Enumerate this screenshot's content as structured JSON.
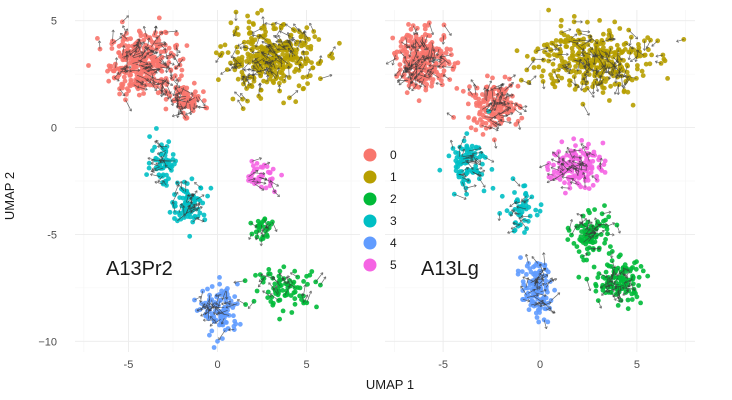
{
  "chart_data": [
    {
      "type": "scatter",
      "panel_label": "A13Pr2",
      "xlim": [
        -8,
        8
      ],
      "ylim": [
        -10.5,
        5.5
      ],
      "x_ticks": [
        -5,
        0,
        5
      ],
      "y_ticks": [
        5,
        0,
        -5,
        -10
      ],
      "x_tick_labels": [
        "-5",
        "0",
        "5"
      ],
      "y_tick_labels": [
        "5",
        "0",
        "-5",
        "−10"
      ],
      "grid": true,
      "overlay": "velocity arrows",
      "clusters": [
        {
          "name": "0",
          "color": "#F8766D",
          "center": [
            -4.2,
            3.0
          ],
          "spread": [
            1.7,
            1.3
          ],
          "n": 330
        },
        {
          "name": "0",
          "color": "#F8766D",
          "center": [
            -1.8,
            1.3
          ],
          "spread": [
            0.8,
            0.6
          ],
          "n": 80
        },
        {
          "name": "1",
          "color": "#B79F00",
          "center": [
            3.0,
            3.2
          ],
          "spread": [
            2.4,
            1.4
          ],
          "n": 330
        },
        {
          "name": "2",
          "color": "#00BA38",
          "center": [
            3.8,
            -7.5
          ],
          "spread": [
            1.7,
            0.8
          ],
          "n": 80
        },
        {
          "name": "2",
          "color": "#00BA38",
          "center": [
            2.6,
            -4.8
          ],
          "spread": [
            0.7,
            0.7
          ],
          "n": 30
        },
        {
          "name": "3",
          "color": "#00BFC4",
          "center": [
            -3.0,
            -1.6
          ],
          "spread": [
            0.7,
            1.0
          ],
          "n": 60
        },
        {
          "name": "3",
          "color": "#00BFC4",
          "center": [
            -1.6,
            -3.6
          ],
          "spread": [
            0.9,
            0.8
          ],
          "n": 90
        },
        {
          "name": "4",
          "color": "#619CFF",
          "center": [
            0.2,
            -8.6
          ],
          "spread": [
            0.9,
            1.1
          ],
          "n": 110
        },
        {
          "name": "5",
          "color": "#F564E3",
          "center": [
            2.4,
            -2.2
          ],
          "spread": [
            0.8,
            0.6
          ],
          "n": 40
        }
      ]
    },
    {
      "type": "scatter",
      "panel_label": "A13Lg",
      "xlim": [
        -8,
        8
      ],
      "ylim": [
        -10.5,
        5.5
      ],
      "x_ticks": [
        -5,
        0,
        5
      ],
      "y_ticks": [
        5,
        0,
        -5,
        -10
      ],
      "x_tick_labels": [
        "-5",
        "0",
        "5"
      ],
      "grid": true,
      "overlay": "velocity arrows",
      "clusters": [
        {
          "name": "0",
          "color": "#F8766D",
          "center": [
            -6.0,
            3.2
          ],
          "spread": [
            1.3,
            1.2
          ],
          "n": 260
        },
        {
          "name": "0",
          "color": "#F8766D",
          "center": [
            -2.4,
            1.0
          ],
          "spread": [
            1.2,
            1.0
          ],
          "n": 160
        },
        {
          "name": "1",
          "color": "#B79F00",
          "center": [
            2.7,
            3.2
          ],
          "spread": [
            2.6,
            1.4
          ],
          "n": 340
        },
        {
          "name": "2",
          "color": "#00BA38",
          "center": [
            2.6,
            -5.0
          ],
          "spread": [
            0.9,
            0.9
          ],
          "n": 90
        },
        {
          "name": "2",
          "color": "#00BA38",
          "center": [
            4.0,
            -7.2
          ],
          "spread": [
            1.2,
            1.0
          ],
          "n": 120
        },
        {
          "name": "3",
          "color": "#00BFC4",
          "center": [
            -3.7,
            -1.6
          ],
          "spread": [
            1.0,
            1.0
          ],
          "n": 90
        },
        {
          "name": "3",
          "color": "#00BFC4",
          "center": [
            -1.0,
            -3.8
          ],
          "spread": [
            0.7,
            1.0
          ],
          "n": 50
        },
        {
          "name": "4",
          "color": "#619CFF",
          "center": [
            -0.2,
            -7.6
          ],
          "spread": [
            0.7,
            1.2
          ],
          "n": 120
        },
        {
          "name": "5",
          "color": "#F564E3",
          "center": [
            1.9,
            -1.8
          ],
          "spread": [
            1.2,
            0.9
          ],
          "n": 140
        }
      ]
    }
  ],
  "axes": {
    "xlabel": "UMAP 1",
    "ylabel": "UMAP 2"
  },
  "legend": {
    "placement": "center",
    "items": [
      {
        "label": "0",
        "color": "#F8766D"
      },
      {
        "label": "1",
        "color": "#B79F00"
      },
      {
        "label": "2",
        "color": "#00BA38"
      },
      {
        "label": "3",
        "color": "#00BFC4"
      },
      {
        "label": "4",
        "color": "#619CFF"
      },
      {
        "label": "5",
        "color": "#F564E3"
      }
    ]
  }
}
